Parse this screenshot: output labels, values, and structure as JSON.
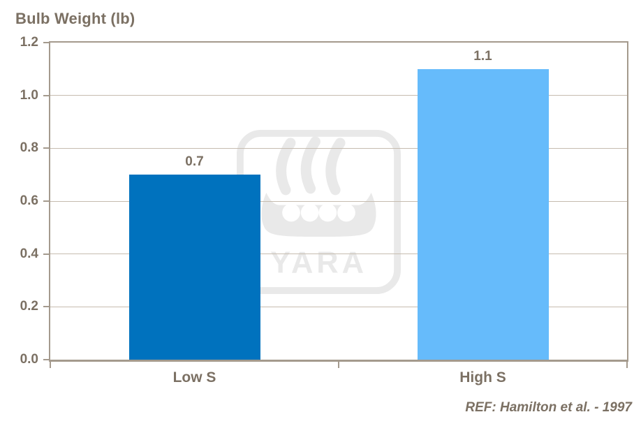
{
  "chart_data": {
    "type": "bar",
    "title": "Bulb Weight (lb)",
    "categories": [
      "Low S",
      "High S"
    ],
    "values": [
      0.7,
      1.1
    ],
    "value_labels": [
      "0.7",
      "1.1"
    ],
    "bar_colors": [
      "#0072BE",
      "#66BBFB"
    ],
    "ylabel": "Bulb Weight (lb)",
    "ylim": [
      0,
      1.2
    ],
    "yticks": [
      0.0,
      0.2,
      0.4,
      0.6,
      0.8,
      1.0,
      1.2
    ],
    "ytick_labels": [
      "0.0",
      "0.2",
      "0.4",
      "0.6",
      "0.8",
      "1.0",
      "1.2"
    ],
    "grid": true,
    "legend": false,
    "annotations": [
      "REF: Hamilton et al. - 1997"
    ]
  },
  "watermark": {
    "name": "yara-logo",
    "text": "YARA"
  },
  "colors": {
    "bar_low_s": "#0072BE",
    "bar_high_s": "#66BBFB",
    "axis": "#A49A8D",
    "gridline": "#C6BCAF",
    "text": "#7B7063",
    "watermark": "#E9E9E9",
    "background": "#FFFFFF"
  }
}
